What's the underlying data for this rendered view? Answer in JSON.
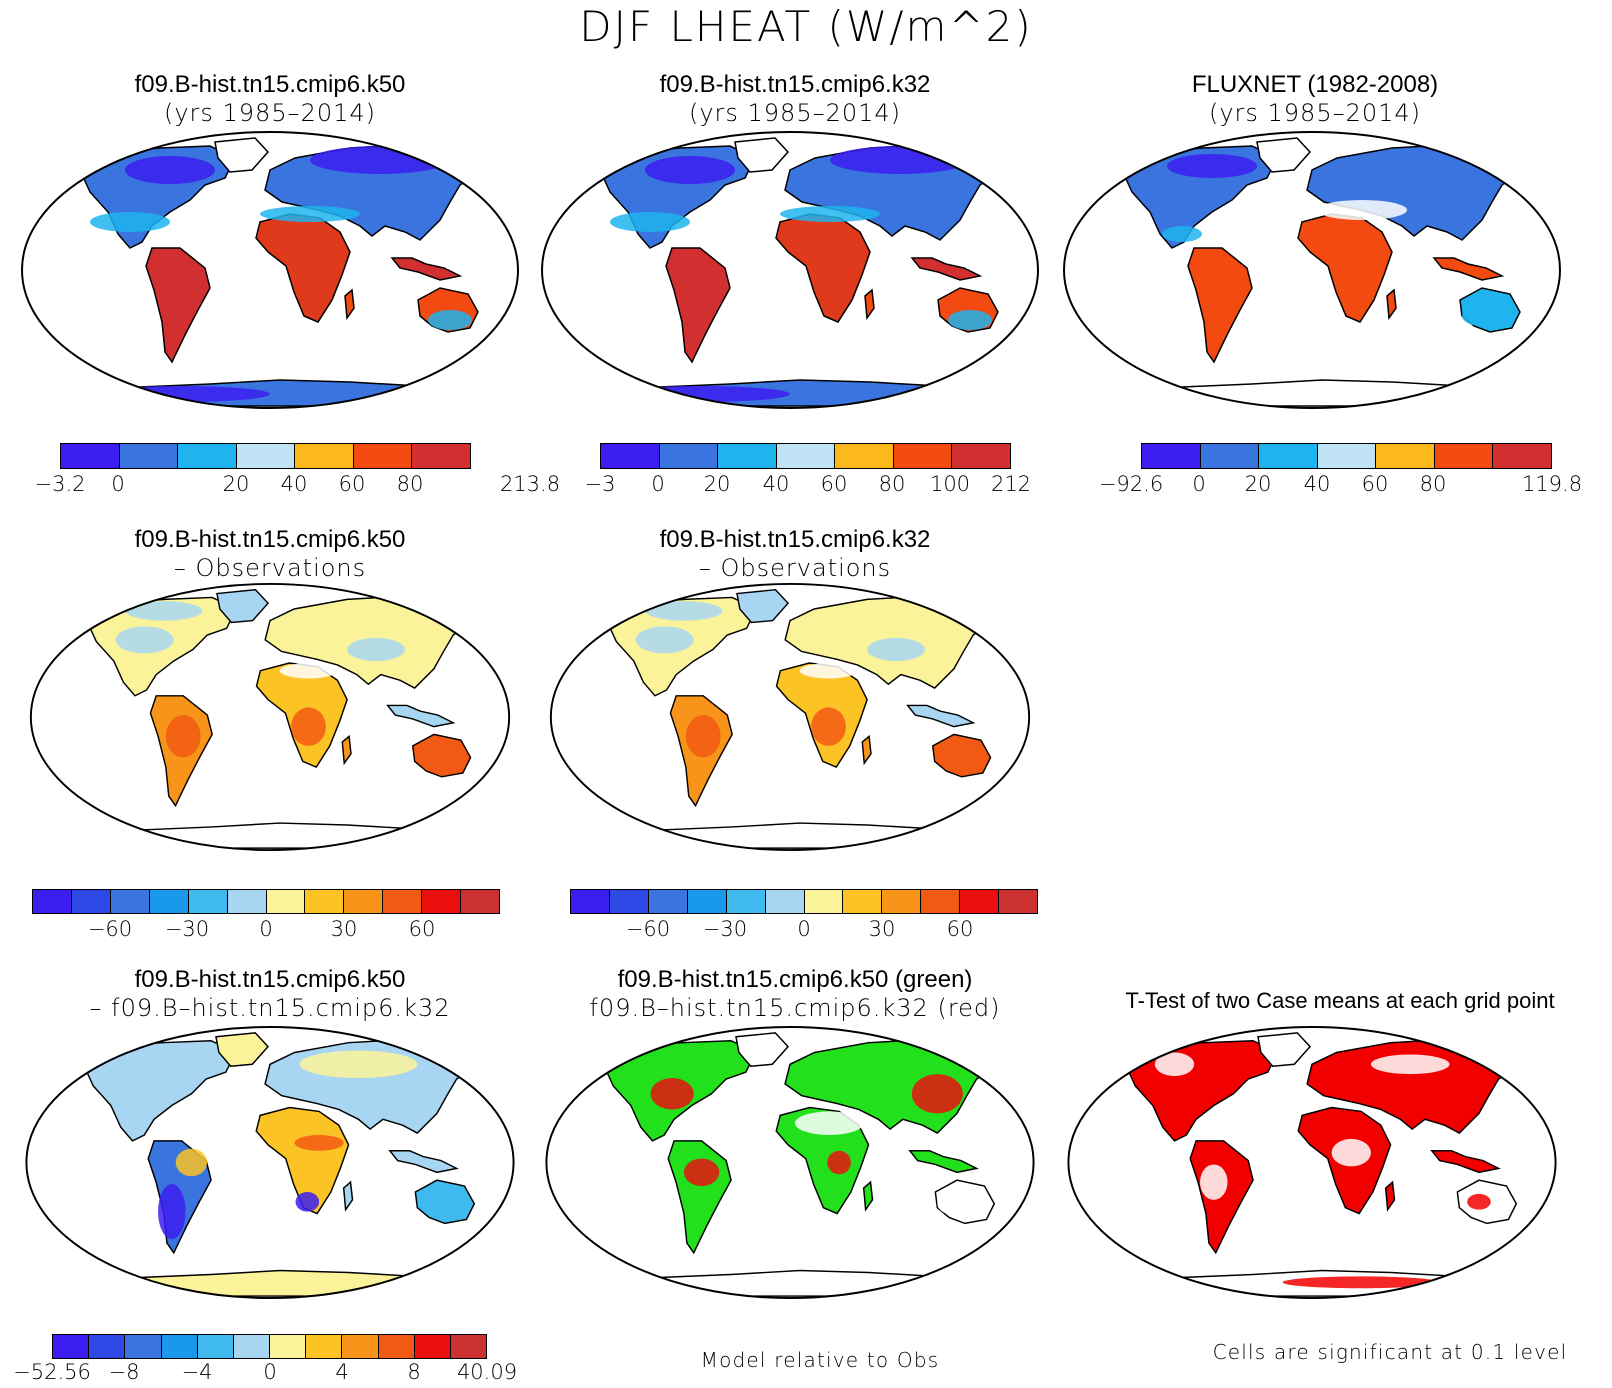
{
  "title": "DJF LHEAT (W/m^2)",
  "panels": [
    {
      "id": "k50",
      "line1": "f09.B-hist.tn15.cmip6.k50",
      "line2": "(yrs 1985–2014)"
    },
    {
      "id": "k32",
      "line1": "f09.B-hist.tn15.cmip6.k32",
      "line2": "(yrs 1985–2014)"
    },
    {
      "id": "obs",
      "line1": "FLUXNET (1982-2008)",
      "line2": "(yrs 1985–2014)"
    },
    {
      "id": "k50-obs",
      "line1": "f09.B-hist.tn15.cmip6.k50",
      "line2": "– Observations"
    },
    {
      "id": "k32-obs",
      "line1": "f09.B-hist.tn15.cmip6.k32",
      "line2": "– Observations"
    },
    {
      "id": "k50-k32",
      "line1": "f09.B-hist.tn15.cmip6.k50",
      "line2": "– f09.B–hist.tn15.cmip6.k32"
    },
    {
      "id": "rel",
      "line1": "f09.B-hist.tn15.cmip6.k50 (green)",
      "line2": "f09.B–hist.tn15.cmip6.k32 (red)"
    },
    {
      "id": "ttest",
      "line1": "T-Test of two Case means at each grid point",
      "line2": ""
    }
  ],
  "colorbars": {
    "abs_colors": [
      "#3c1ef0",
      "#3a74de",
      "#1fb4ee",
      "#bfe3f5",
      "#fbb91c",
      "#f24a10",
      "#d23030"
    ],
    "diff_colors": [
      "#3c1ef0",
      "#2f49e6",
      "#3a74de",
      "#1a98ea",
      "#40b9ef",
      "#a8d6f2",
      "#fbf39a",
      "#fbc324",
      "#f89419",
      "#f25a14",
      "#ea1010",
      "#cc3232"
    ],
    "cb1": [
      "−3.2",
      "0",
      "20",
      "40",
      "60",
      "80",
      "213.8"
    ],
    "cb2": [
      "−3",
      "0",
      "20",
      "40",
      "60",
      "80",
      "100",
      "212"
    ],
    "cb3": [
      "−92.6",
      "0",
      "20",
      "40",
      "60",
      "80",
      "119.8"
    ],
    "cb4": [
      "−60",
      "−30",
      "0",
      "30",
      "60"
    ],
    "cb5": [
      "−60",
      "−30",
      "0",
      "30",
      "60"
    ],
    "cb6": [
      "−52.56",
      "−8",
      "−4",
      "0",
      "4",
      "8",
      "40.09"
    ]
  },
  "notes": {
    "relative": "Model relative to Obs",
    "significance": "Cells are significant at 0.1 level"
  }
}
